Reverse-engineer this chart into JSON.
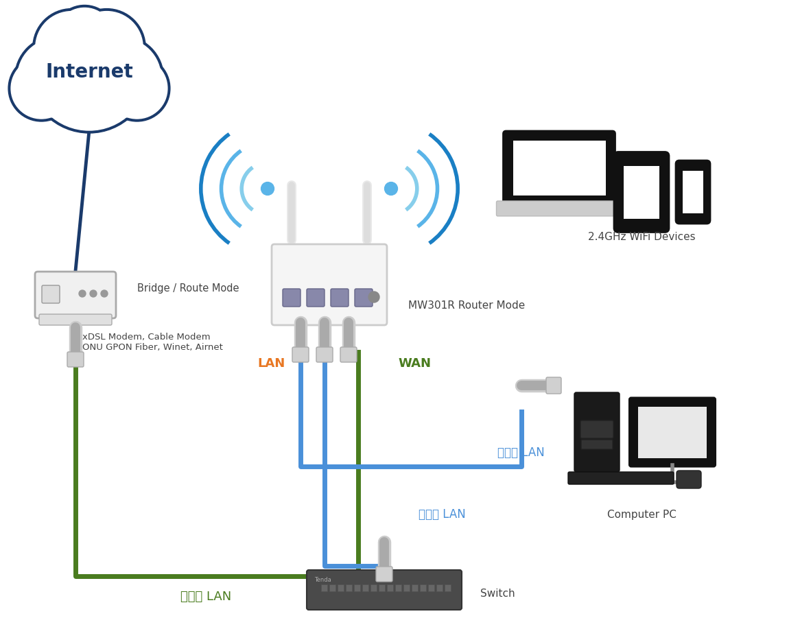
{
  "bg_color": "#ffffff",
  "cloud_text": "Internet",
  "cloud_border": "#1a3a6b",
  "modem_label1": "Bridge / Route Mode",
  "modem_label2": "xDSL Modem, Cable Modem\nONU GPON Fiber, Winet, Airnet",
  "router_label": "MW301R Router Mode",
  "wifi_label": "2.4GHz WiFi Devices",
  "lan_label_orange": "LAN",
  "wan_label_green": "WAN",
  "cable_green_color": "#4a7c1f",
  "cable_blue_color": "#4a90d9",
  "lan_text_color": "#e87722",
  "say_lan_color": "#4a7c1f",
  "say_lan_text": "สาย LAN",
  "say_lan_blue": "สาย LAN",
  "computer_label": "Computer PC",
  "switch_label": "Switch",
  "text_color": "#444444",
  "title_color": "#1a3a6b",
  "wifi_arc_colors": [
    "#87ceeb",
    "#5ab4e8",
    "#1a7fc4"
  ],
  "internet_line_color": "#1a3a6b"
}
